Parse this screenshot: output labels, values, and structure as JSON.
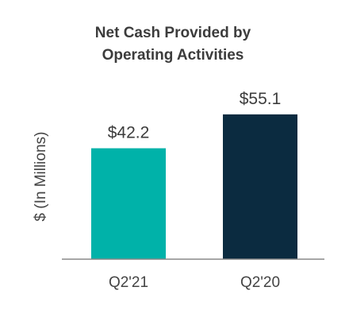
{
  "chart_data": {
    "type": "bar",
    "title_lines": [
      "Net Cash Provided by",
      "Operating Activities"
    ],
    "ylabel": "$ (In Millions)",
    "categories": [
      "Q2'21",
      "Q2'20"
    ],
    "values": [
      42.2,
      55.1
    ],
    "value_labels": [
      "$42.2",
      "$55.1"
    ],
    "colors": [
      "#00b2a9",
      "#0b2b40"
    ],
    "axis_color": "#888888",
    "ylim": [
      0,
      72
    ],
    "grid": false
  }
}
